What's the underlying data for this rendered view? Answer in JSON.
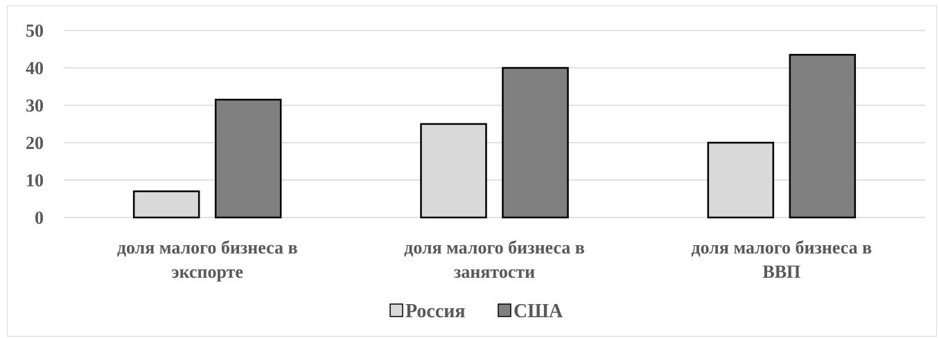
{
  "chart_data": {
    "type": "bar",
    "categories": [
      [
        "доля малого бизнеса в",
        "экспорте"
      ],
      [
        "доля малого бизнеса в",
        "занятости"
      ],
      [
        "доля малого бизнеса в",
        "ВВП"
      ]
    ],
    "series": [
      {
        "name": "Россия",
        "values": [
          7,
          25,
          20
        ],
        "color": "#d9d9d9"
      },
      {
        "name": "США",
        "values": [
          31.5,
          40,
          43.5
        ],
        "color": "#808080"
      }
    ],
    "yticks": [
      0,
      10,
      20,
      30,
      40,
      50
    ],
    "ylim": [
      0,
      50
    ],
    "grid": true,
    "legend_position": "bottom"
  }
}
